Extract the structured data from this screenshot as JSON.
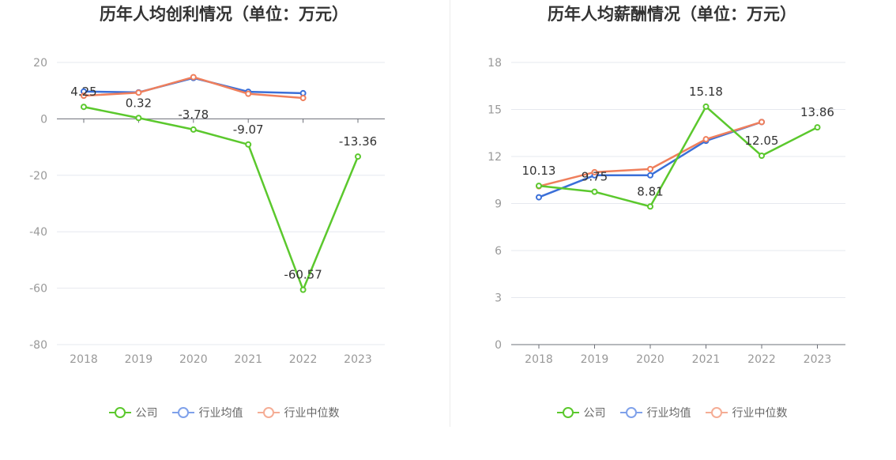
{
  "chart_data": [
    {
      "type": "line",
      "title": "历年人均创利情况（单位：万元）",
      "categories": [
        "2018",
        "2019",
        "2020",
        "2021",
        "2022",
        "2023"
      ],
      "ylim": [
        -80,
        20
      ],
      "yticks": [
        20,
        0,
        -20,
        -40,
        -60,
        -80
      ],
      "series": [
        {
          "name": "公司",
          "color": "#5bc82d",
          "values": [
            4.25,
            0.32,
            -3.78,
            -9.07,
            -60.57,
            -13.36
          ],
          "labels": [
            "4.25",
            "0.32",
            "-3.78",
            "-9.07",
            "-60.57",
            "-13.36"
          ]
        },
        {
          "name": "行业均值",
          "color": "#3a6fd8",
          "values": [
            9.7,
            9.4,
            14.5,
            9.6,
            9.1,
            null
          ]
        },
        {
          "name": "行业中位数",
          "color": "#ef7f5c",
          "values": [
            8.2,
            9.3,
            14.8,
            8.9,
            7.4,
            null
          ]
        }
      ]
    },
    {
      "type": "line",
      "title": "历年人均薪酬情况（单位：万元）",
      "categories": [
        "2018",
        "2019",
        "2020",
        "2021",
        "2022",
        "2023"
      ],
      "ylim": [
        0,
        18
      ],
      "yticks": [
        18,
        15,
        12,
        9,
        6,
        3,
        0
      ],
      "series": [
        {
          "name": "公司",
          "color": "#5bc82d",
          "values": [
            10.13,
            9.75,
            8.81,
            15.18,
            12.05,
            13.86
          ],
          "labels": [
            "10.13",
            "9.75",
            "8.81",
            "15.18",
            "12.05",
            "13.86"
          ]
        },
        {
          "name": "行业均值",
          "color": "#3a6fd8",
          "values": [
            9.4,
            10.8,
            10.8,
            13.0,
            14.2,
            null
          ]
        },
        {
          "name": "行业中位数",
          "color": "#ef7f5c",
          "values": [
            10.1,
            11.0,
            11.2,
            13.1,
            14.2,
            null
          ]
        }
      ]
    }
  ],
  "legend": {
    "items": [
      {
        "label": "公司",
        "color": "#5bc82d"
      },
      {
        "label": "行业均值",
        "color": "#7fa1ea"
      },
      {
        "label": "行业中位数",
        "color": "#f5ad95"
      }
    ]
  }
}
